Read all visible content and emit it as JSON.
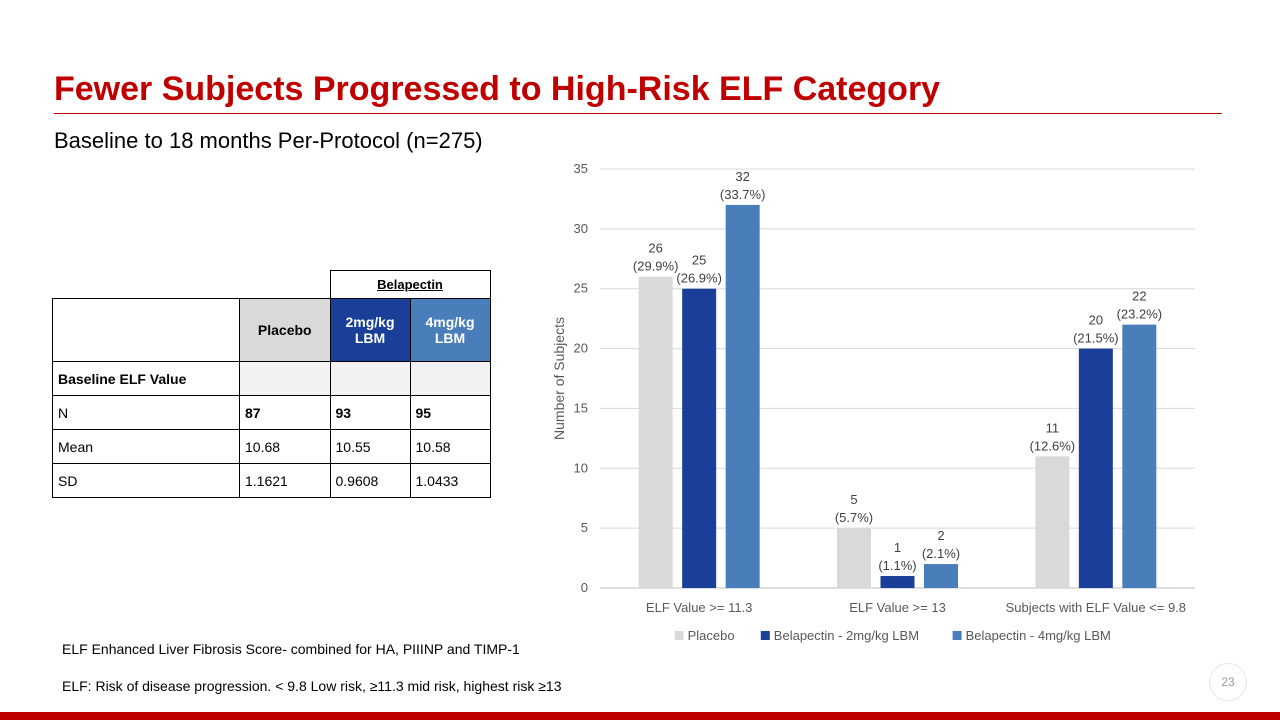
{
  "slide": {
    "title": "Fewer Subjects Progressed to High-Risk ELF Category",
    "subtitle": "Baseline to 18 months  Per-Protocol (n=275)",
    "page_number": "23"
  },
  "table": {
    "group_header": "Belapectin",
    "col_placebo": "Placebo",
    "col_2mg": "2mg/kg LBM",
    "col_4mg": "4mg/kg LBM",
    "section_label": "Baseline ELF Value",
    "rows": [
      {
        "label": "N",
        "placebo": "87",
        "dose2": "93",
        "dose4": "95"
      },
      {
        "label": "Mean",
        "placebo": "10.68",
        "dose2": "10.55",
        "dose4": "10.58"
      },
      {
        "label": "SD",
        "placebo": "1.1621",
        "dose2": "0.9608",
        "dose4": "1.0433"
      }
    ],
    "colors": {
      "placebo": "#d9d9d9",
      "dose2": "#1a3f99",
      "dose4": "#4a7ebb"
    }
  },
  "chart_data": {
    "type": "bar",
    "categories": [
      "ELF Value >= 11.3",
      "ELF Value >= 13",
      "Subjects with ELF Value <= 9.8"
    ],
    "series": [
      {
        "name": "Placebo",
        "color": "#d9d9d9",
        "values": [
          26,
          5,
          11
        ],
        "labels": [
          "(29.9%)",
          "(5.7%)",
          "(12.6%)"
        ]
      },
      {
        "name": "Belapectin - 2mg/kg LBM",
        "color": "#1a3f99",
        "values": [
          25,
          1,
          20
        ],
        "labels": [
          "(26.9%)",
          "(1.1%)",
          "(21.5%)"
        ]
      },
      {
        "name": "Belapectin - 4mg/kg LBM",
        "color": "#4a7ebb",
        "values": [
          32,
          2,
          22
        ],
        "labels": [
          "(33.7%)",
          "(2.1%)",
          "(23.2%)"
        ]
      }
    ],
    "xlabel": "",
    "ylabel": "Number of Subjects",
    "ylim": [
      0,
      35
    ],
    "yticks": [
      0,
      5,
      10,
      15,
      20,
      25,
      30,
      35
    ],
    "grid": true,
    "legend": "bottom"
  },
  "footnotes": {
    "line1": "ELF Enhanced Liver Fibrosis Score- combined for HA, PIIINP and TIMP-1",
    "line2": "ELF: Risk of disease progression. < 9.8 Low risk,  ≥11.3 mid risk, highest risk ≥13"
  }
}
